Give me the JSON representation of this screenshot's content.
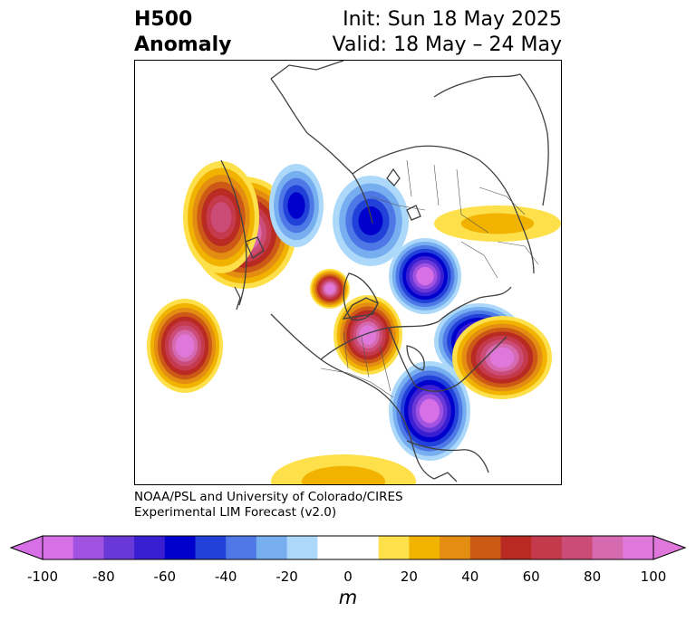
{
  "title": {
    "line1_left": "H500",
    "line2_left": "Anomaly",
    "line1_right": "Init: Sun 18 May 2025",
    "line2_right": "Valid: 18 May – 24 May"
  },
  "credit": {
    "line1": "NOAA/PSL and University of Colorado/CIRES",
    "line2": "Experimental LIM Forecast (v2.0)"
  },
  "colorbar": {
    "unit": "m",
    "tick_labels": [
      "-100",
      "-80",
      "-60",
      "-40",
      "-20",
      "0",
      "20",
      "40",
      "60",
      "80",
      "100"
    ],
    "colors": [
      "#d76fe6",
      "#a252e0",
      "#6a38d6",
      "#3a1fd2",
      "#0000cc",
      "#2241d8",
      "#4d78e6",
      "#76aef0",
      "#acd8fa",
      "#ffffff",
      "#ffffff",
      "#fde04a",
      "#f2b300",
      "#e38e12",
      "#cc5a16",
      "#b82a22",
      "#c43a4c",
      "#cc4c78",
      "#d66ab0",
      "#e078dc"
    ],
    "extend_low_color": "#d76fe6",
    "extend_high_color": "#e078dc"
  },
  "anomaly_features": [
    {
      "sign": "positive",
      "peak_m": 100
    },
    {
      "sign": "positive",
      "peak_m": 100
    },
    {
      "sign": "negative",
      "peak_m": -100
    },
    {
      "sign": "positive",
      "peak_m": 100
    },
    {
      "sign": "negative",
      "peak_m": -100
    },
    {
      "sign": "positive",
      "peak_m": 80
    },
    {
      "sign": "negative",
      "peak_m": -60
    },
    {
      "sign": "negative",
      "peak_m": -60
    },
    {
      "sign": "positive",
      "peak_m": 100
    },
    {
      "sign": "negative",
      "peak_m": -100
    },
    {
      "sign": "positive",
      "peak_m": 100
    },
    {
      "sign": "positive",
      "peak_m": 20
    },
    {
      "sign": "positive",
      "peak_m": 20
    }
  ]
}
